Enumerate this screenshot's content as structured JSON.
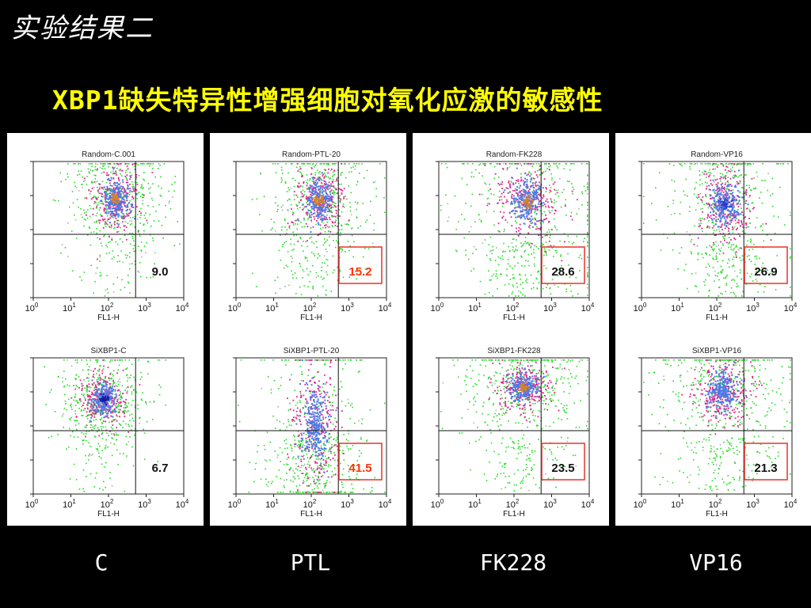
{
  "corner_title": "实验结果二",
  "main_title": "XBP1缺失特异性增强细胞对氧化应激的敏感性",
  "colors": {
    "background": "#000000",
    "main_title": "#ffff00",
    "highlight_box": "#e8322a",
    "highlight_text": "#ff3300",
    "density_low": "#22dd22",
    "density_mid": "#e0228a",
    "density_high": "#4a7ae8",
    "density_peak": "#e08020"
  },
  "chart_data": [
    {
      "type": "scatter",
      "title": "Random-C.001",
      "xlabel": "FL1-H",
      "xscale": "log",
      "xlim": [
        1,
        10000
      ],
      "x_ticks": [
        "10^0",
        "10^1",
        "10^2",
        "10^3",
        "10^4"
      ],
      "quadrant_value": "9.0",
      "highlighted": false,
      "value_color": "black"
    },
    {
      "type": "scatter",
      "title": "Random-PTL-20",
      "xlabel": "FL1-H",
      "xscale": "log",
      "xlim": [
        1,
        10000
      ],
      "x_ticks": [
        "10^0",
        "10^1",
        "10^2",
        "10^3",
        "10^4"
      ],
      "quadrant_value": "15.2",
      "highlighted": true,
      "value_color": "red"
    },
    {
      "type": "scatter",
      "title": "Random-FK228",
      "xlabel": "FL1-H",
      "xscale": "log",
      "xlim": [
        1,
        10000
      ],
      "x_ticks": [
        "10^0",
        "10^1",
        "10^2",
        "10^3",
        "10^4"
      ],
      "quadrant_value": "28.6",
      "highlighted": true,
      "value_color": "black"
    },
    {
      "type": "scatter",
      "title": "Random-VP16",
      "xlabel": "FL1-H",
      "xscale": "log",
      "xlim": [
        1,
        10000
      ],
      "x_ticks": [
        "10^0",
        "10^1",
        "10^2",
        "10^3",
        "10^4"
      ],
      "quadrant_value": "26.9",
      "highlighted": true,
      "value_color": "black"
    },
    {
      "type": "scatter",
      "title": "SiXBP1-C",
      "xlabel": "FL1-H",
      "xscale": "log",
      "xlim": [
        1,
        10000
      ],
      "x_ticks": [
        "10^0",
        "10^1",
        "10^2",
        "10^3",
        "10^4"
      ],
      "quadrant_value": "6.7",
      "highlighted": false,
      "value_color": "black"
    },
    {
      "type": "scatter",
      "title": "SiXBP1-PTL-20",
      "xlabel": "FL1-H",
      "xscale": "log",
      "xlim": [
        1,
        10000
      ],
      "x_ticks": [
        "10^0",
        "10^1",
        "10^2",
        "10^3",
        "10^4"
      ],
      "quadrant_value": "41.5",
      "highlighted": true,
      "value_color": "red"
    },
    {
      "type": "scatter",
      "title": "SiXBP1-FK228",
      "xlabel": "FL1-H",
      "xscale": "log",
      "xlim": [
        1,
        10000
      ],
      "x_ticks": [
        "10^0",
        "10^1",
        "10^2",
        "10^3",
        "10^4"
      ],
      "quadrant_value": "23.5",
      "highlighted": true,
      "value_color": "black"
    },
    {
      "type": "scatter",
      "title": "SiXBP1-VP16",
      "xlabel": "FL1-H",
      "xscale": "log",
      "xlim": [
        1,
        10000
      ],
      "x_ticks": [
        "10^0",
        "10^1",
        "10^2",
        "10^3",
        "10^4"
      ],
      "quadrant_value": "21.3",
      "highlighted": true,
      "value_color": "black"
    }
  ],
  "column_labels": [
    "C",
    "PTL",
    "FK228",
    "VP16"
  ]
}
